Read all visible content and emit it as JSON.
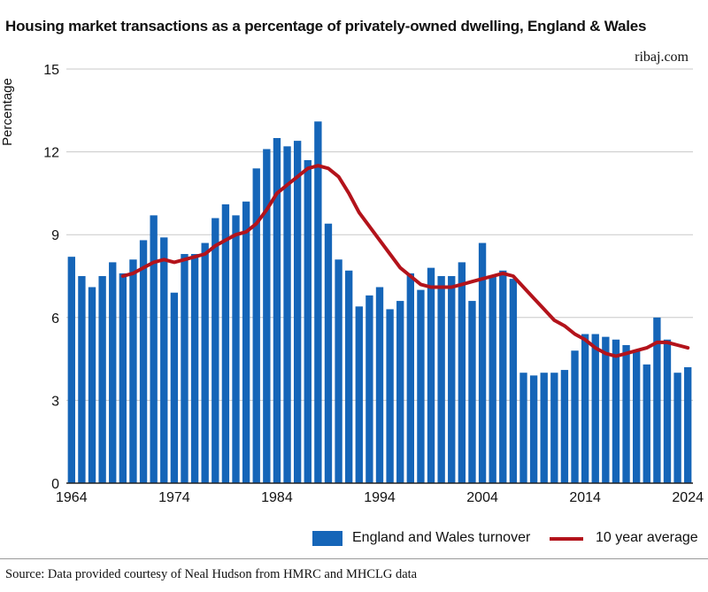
{
  "colors": {
    "bar": "#1565b8",
    "line": "#b3131b",
    "grid": "#c8c8c8"
  },
  "chart_data": {
    "type": "bar",
    "title": "Housing market transactions as a percentage of privately-owned dwelling, England & Wales",
    "credit": "ribaj.com",
    "ylabel": "Percentage",
    "xlabel": "",
    "ylim": [
      0,
      15
    ],
    "yticks": [
      0,
      3,
      6,
      9,
      12,
      15
    ],
    "xticks": [
      1964,
      1974,
      1984,
      1994,
      2004,
      2014,
      2024
    ],
    "grid": true,
    "legend_position": "bottom-right",
    "years": [
      1964,
      1965,
      1966,
      1967,
      1968,
      1969,
      1970,
      1971,
      1972,
      1973,
      1974,
      1975,
      1976,
      1977,
      1978,
      1979,
      1980,
      1981,
      1982,
      1983,
      1984,
      1985,
      1986,
      1987,
      1988,
      1989,
      1990,
      1991,
      1992,
      1993,
      1994,
      1995,
      1996,
      1997,
      1998,
      1999,
      2000,
      2001,
      2002,
      2003,
      2004,
      2005,
      2006,
      2007,
      2008,
      2009,
      2010,
      2011,
      2012,
      2013,
      2014,
      2015,
      2016,
      2017,
      2018,
      2019,
      2020,
      2021,
      2022,
      2023,
      2024
    ],
    "series": [
      {
        "name": "England and Wales turnover",
        "type": "bar",
        "values": [
          8.2,
          7.5,
          7.1,
          7.5,
          8.0,
          7.6,
          8.1,
          8.8,
          9.7,
          8.9,
          6.9,
          8.3,
          8.3,
          8.7,
          9.6,
          10.1,
          9.7,
          10.2,
          11.4,
          12.1,
          12.5,
          12.2,
          12.4,
          11.7,
          13.1,
          9.4,
          8.1,
          7.7,
          6.4,
          6.8,
          7.1,
          6.3,
          6.6,
          7.6,
          7.0,
          7.8,
          7.5,
          7.5,
          8.0,
          6.6,
          8.7,
          7.5,
          7.7,
          7.4,
          4.0,
          3.9,
          4.0,
          4.0,
          4.1,
          4.8,
          5.4,
          5.4,
          5.3,
          5.2,
          5.0,
          4.8,
          4.3,
          6.0,
          5.2,
          4.0,
          4.2
        ]
      },
      {
        "name": "10 year average",
        "type": "line",
        "x": [
          1969,
          1970,
          1971,
          1972,
          1973,
          1974,
          1975,
          1976,
          1977,
          1978,
          1979,
          1980,
          1981,
          1982,
          1983,
          1984,
          1985,
          1986,
          1987,
          1988,
          1989,
          1990,
          1991,
          1992,
          1993,
          1994,
          1995,
          1996,
          1997,
          1998,
          1999,
          2000,
          2001,
          2002,
          2003,
          2004,
          2005,
          2006,
          2007,
          2008,
          2009,
          2010,
          2011,
          2012,
          2013,
          2014,
          2015,
          2016,
          2017,
          2018,
          2019,
          2020,
          2021,
          2022,
          2023,
          2024
        ],
        "values": [
          7.5,
          7.6,
          7.8,
          8.0,
          8.1,
          8.0,
          8.1,
          8.2,
          8.3,
          8.6,
          8.8,
          9.0,
          9.1,
          9.4,
          9.9,
          10.5,
          10.8,
          11.1,
          11.4,
          11.5,
          11.4,
          11.1,
          10.5,
          9.8,
          9.3,
          8.8,
          8.3,
          7.8,
          7.5,
          7.2,
          7.1,
          7.1,
          7.1,
          7.2,
          7.3,
          7.4,
          7.5,
          7.6,
          7.5,
          7.1,
          6.7,
          6.3,
          5.9,
          5.7,
          5.4,
          5.2,
          4.9,
          4.7,
          4.6,
          4.7,
          4.8,
          4.9,
          5.1,
          5.1,
          5.0,
          4.9
        ]
      }
    ]
  },
  "legend": {
    "bar_label": "England and Wales turnover",
    "line_label": "10 year average"
  },
  "source": "Source: Data provided courtesy of Neal Hudson from HMRC and MHCLG data"
}
